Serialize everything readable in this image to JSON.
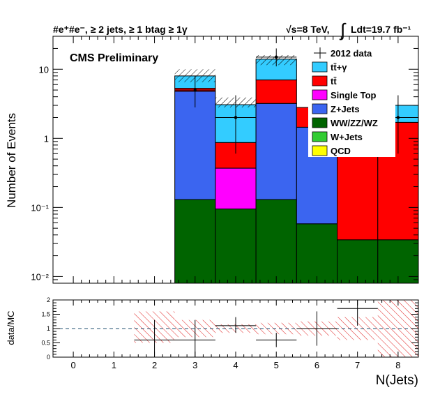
{
  "header": {
    "selection": "#e⁺#e⁻, ≥ 2 jets, ≥ 1 btag ≥ 1γ",
    "energy": "√s=8 TeV,",
    "lumi_prefix": "∫",
    "lumi": "Ldt=19.7 fb⁻¹"
  },
  "label": "CMS Preliminary",
  "chart_data": [
    {
      "type": "bar",
      "stacked": true,
      "y_scale": "log",
      "ylabel": "Number of Events",
      "xlim": [
        -0.5,
        8.5
      ],
      "ylim": [
        0.008,
        30
      ],
      "x_ticks": [
        "0",
        "1",
        "2",
        "3",
        "4",
        "5",
        "6",
        "7",
        "8"
      ],
      "y_ticks": [
        {
          "value": 0.01,
          "label": "10⁻²"
        },
        {
          "value": 0.1,
          "label": "10⁻¹"
        },
        {
          "value": 1,
          "label": "1"
        },
        {
          "value": 10,
          "label": "10"
        }
      ],
      "categories": [
        "3",
        "4",
        "5",
        "6",
        "7",
        "8"
      ],
      "series": [
        {
          "name": "WW/ZZ/WZ",
          "color": "#006400",
          "values": [
            0.13,
            0.095,
            0.13,
            0.058,
            0.034,
            0.034
          ]
        },
        {
          "name": "Z+Jets",
          "color": "#3b65f0",
          "values": [
            4.67,
            0.0,
            3.07,
            1.39,
            0.0,
            0.0
          ]
        },
        {
          "name": "Single Top",
          "color": "#ff00ff",
          "values": [
            0.0,
            0.275,
            0.0,
            0.0,
            0.0,
            0.0
          ]
        },
        {
          "name": "tt̄",
          "color": "#ff0000",
          "values": [
            0.5,
            0.5,
            3.8,
            1.35,
            1.67,
            1.67
          ]
        },
        {
          "name": "tt̄+γ",
          "color": "#33ccff",
          "values": [
            2.7,
            2.2,
            7.0,
            0.0,
            1.3,
            1.3
          ]
        },
        {
          "name": "W+Jets",
          "color": "#33cc33",
          "values": [
            0,
            0,
            0,
            0,
            0,
            0
          ]
        },
        {
          "name": "QCD",
          "color": "#ffff00",
          "values": [
            0,
            0,
            0,
            0,
            0,
            0
          ]
        }
      ],
      "uncertainty_band": {
        "x": [
          3,
          4,
          5
        ],
        "low": [
          6.5,
          2.8,
          11.5
        ],
        "high": [
          10.0,
          3.9,
          16.0
        ]
      },
      "data": {
        "name": "2012 data",
        "points": [
          {
            "x": 3,
            "y": 5.0,
            "low": 2.8,
            "high": 8.0
          },
          {
            "x": 4,
            "y": 2.0,
            "low": 0.6,
            "high": 4.2
          },
          {
            "x": 5,
            "y": 15.0,
            "low": 11.0,
            "high": 20.0
          },
          {
            "x": 8,
            "y": 2.0,
            "low": 0.6,
            "high": 4.2
          }
        ]
      },
      "legend": {
        "position": "top-right"
      }
    },
    {
      "type": "scatter",
      "ylabel": "data/MC",
      "xlabel": "N(Jets)",
      "xlim": [
        -0.5,
        8.5
      ],
      "ylim": [
        0,
        2
      ],
      "x_ticks": [
        "0",
        "1",
        "2",
        "3",
        "4",
        "5",
        "6",
        "7",
        "8"
      ],
      "y_ticks": [
        "0",
        "0.5",
        "1",
        "1.5",
        "2"
      ],
      "reference_line": 1,
      "points": [
        {
          "x": 2,
          "y": 0.6,
          "low": 0.0,
          "high": 1.3
        },
        {
          "x": 3,
          "y": 0.6,
          "low": 0.0,
          "high": 1.3
        },
        {
          "x": 4,
          "y": 1.1,
          "low": 0.85,
          "high": 1.4
        },
        {
          "x": 5,
          "y": 0.6,
          "low": 0.35,
          "high": 0.85
        },
        {
          "x": 6,
          "y": 1.0,
          "low": 0.4,
          "high": 1.6
        },
        {
          "x": 7,
          "y": 1.7,
          "low": 1.1,
          "high": 2.3
        }
      ],
      "uncertainty_band": [
        {
          "x0": 1.5,
          "x1": 2.5,
          "low": 0.5,
          "high": 1.6
        },
        {
          "x0": 2.5,
          "x1": 3.5,
          "low": 0.7,
          "high": 1.3
        },
        {
          "x0": 3.5,
          "x1": 4.5,
          "low": 0.85,
          "high": 1.15
        },
        {
          "x0": 4.5,
          "x1": 5.5,
          "low": 0.8,
          "high": 1.2
        },
        {
          "x0": 5.5,
          "x1": 6.5,
          "low": 0.75,
          "high": 1.25
        },
        {
          "x0": 6.5,
          "x1": 7.5,
          "low": 0.6,
          "high": 1.4
        },
        {
          "x0": 7.5,
          "x1": 8.5,
          "low": 0.0,
          "high": 2.0
        }
      ]
    }
  ]
}
